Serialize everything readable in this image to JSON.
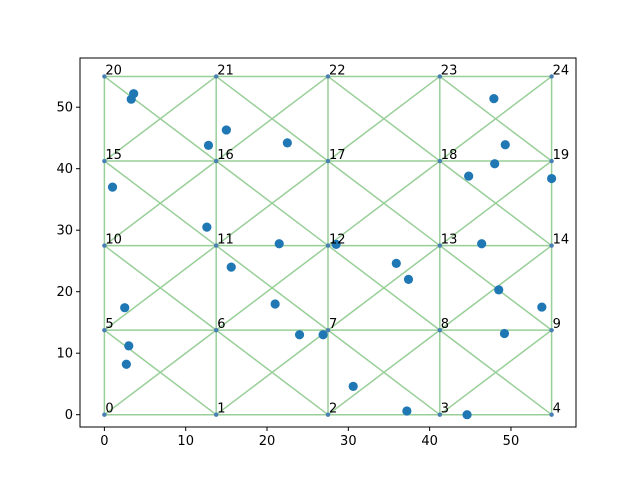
{
  "chart_data": {
    "type": "scatter",
    "title": "",
    "xlabel": "",
    "ylabel": "",
    "xlim": [
      -3,
      58
    ],
    "ylim": [
      -2,
      58
    ],
    "xticks": [
      0,
      10,
      20,
      30,
      40,
      50
    ],
    "yticks": [
      0,
      10,
      20,
      30,
      40,
      50
    ],
    "mesh": {
      "color": "#98cf98",
      "node_color": "#4a7fb5",
      "xs": [
        0,
        13.75,
        27.5,
        41.25,
        55
      ],
      "ys": [
        0,
        13.75,
        27.5,
        41.25,
        55
      ],
      "node_labels": [
        "0",
        "1",
        "2",
        "3",
        "4",
        "5",
        "6",
        "7",
        "8",
        "9",
        "10",
        "11",
        "12",
        "13",
        "14",
        "15",
        "16",
        "17",
        "18",
        "19",
        "20",
        "21",
        "22",
        "23",
        "24"
      ]
    },
    "points": {
      "color": "#1f77b4",
      "x": [
        3.6,
        3.3,
        15.0,
        12.8,
        22.5,
        1.0,
        12.6,
        21.5,
        28.5,
        15.6,
        35.9,
        37.4,
        2.5,
        21.0,
        24.0,
        26.9,
        3.0,
        2.7,
        30.6,
        37.2,
        44.6,
        47.9,
        49.3,
        48.0,
        44.8,
        55.0,
        46.4,
        48.5,
        53.8,
        49.2
      ],
      "y": [
        52.2,
        51.3,
        46.3,
        43.8,
        44.2,
        37.0,
        30.5,
        27.8,
        27.7,
        24.0,
        24.6,
        22.0,
        17.4,
        18.0,
        13.0,
        13.0,
        11.2,
        8.2,
        4.6,
        0.6,
        0.0,
        51.4,
        43.9,
        40.8,
        38.8,
        38.4,
        27.8,
        20.3,
        17.5,
        13.2
      ]
    }
  }
}
